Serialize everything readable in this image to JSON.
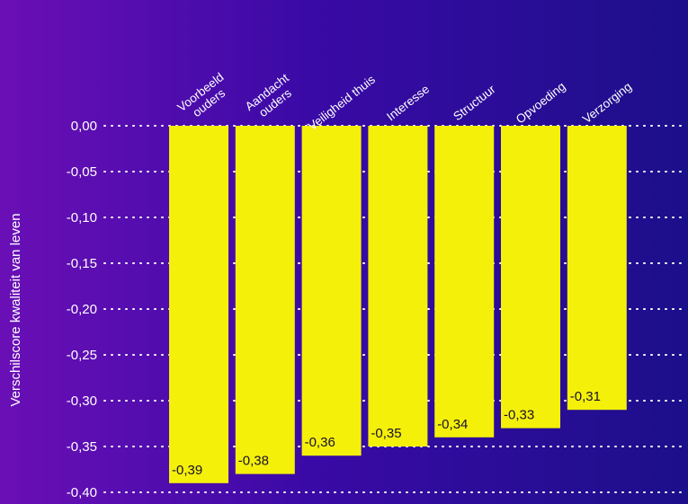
{
  "chart_data": {
    "type": "bar",
    "title": "",
    "xlabel": "",
    "ylabel": "Verschilscore kwaliteit van leven",
    "ylim": [
      -0.4,
      0.0
    ],
    "yticks": [
      0.0,
      -0.05,
      -0.1,
      -0.15,
      -0.2,
      -0.25,
      -0.3,
      -0.35,
      -0.4
    ],
    "ytick_labels": [
      "0,00",
      "-0,05",
      "-0,10",
      "-0,15",
      "-0,20",
      "-0,25",
      "-0,30",
      "-0,35",
      "-0,40"
    ],
    "grid": true,
    "categories": [
      [
        "Voorbeeld",
        "ouders"
      ],
      [
        "Aandacht",
        "ouders"
      ],
      [
        "Veiligheid thuis"
      ],
      [
        "Interesse"
      ],
      [
        "Structuur"
      ],
      [
        "Opvoeding"
      ],
      [
        "Verzorging"
      ]
    ],
    "values": [
      -0.39,
      -0.38,
      -0.36,
      -0.35,
      -0.34,
      -0.33,
      -0.31
    ],
    "value_labels": [
      "-0,39",
      "-0,38",
      "-0,36",
      "-0,35",
      "-0,34",
      "-0,33",
      "-0,31"
    ],
    "colors": {
      "bar": "#f4f00a",
      "grid": "#ffffff",
      "text": "#ffffff",
      "value_text": "#1a1030"
    }
  }
}
